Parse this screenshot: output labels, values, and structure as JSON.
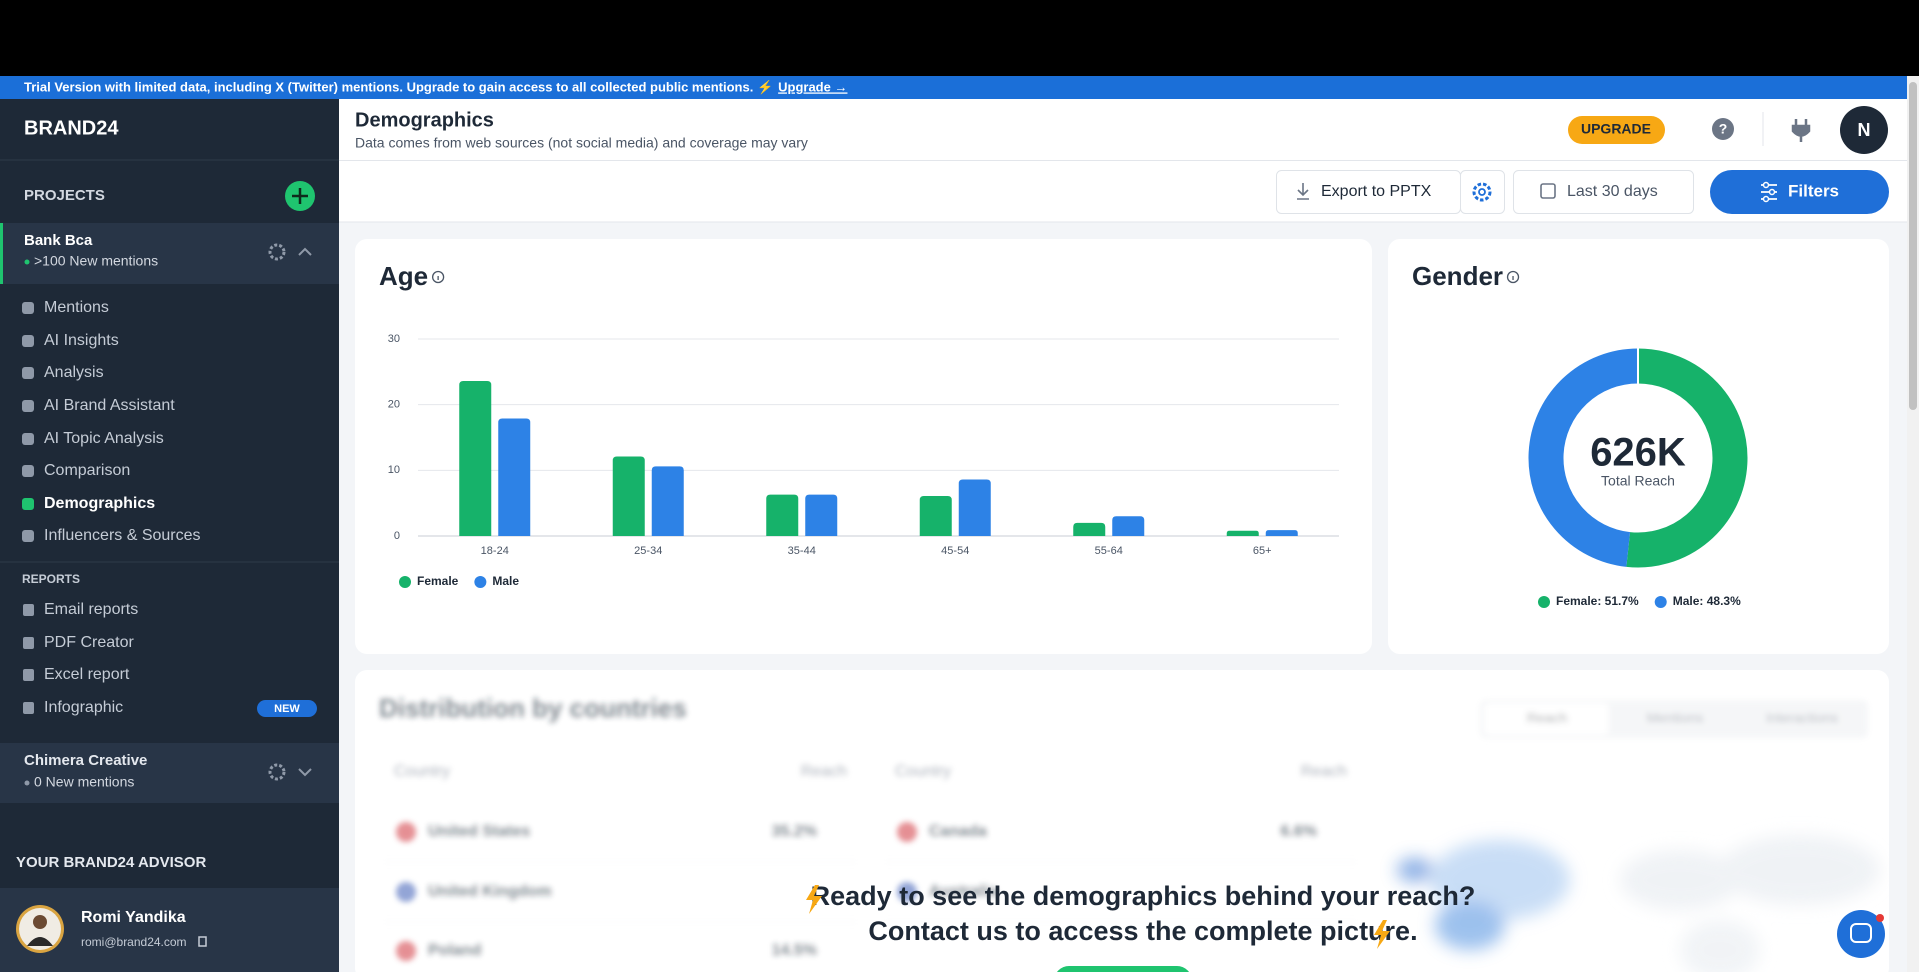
{
  "banner": {
    "text": "Trial Version with limited data, including X (Twitter) mentions. Upgrade to gain access to all collected public mentions. ⚡",
    "link": "Upgrade →"
  },
  "sidebar": {
    "brand": "BRAND24",
    "projects_heading": "PROJECTS",
    "projects": [
      {
        "name": "Bank Bca",
        "status": ">100 New mentions"
      },
      {
        "name": "Chimera Creative",
        "status": "0 New mentions"
      }
    ],
    "nav": [
      "Mentions",
      "AI Insights",
      "Analysis",
      "AI Brand Assistant",
      "AI Topic Analysis",
      "Comparison",
      "Demographics",
      "Influencers & Sources"
    ],
    "reports_heading": "REPORTS",
    "reports": [
      "Email reports",
      "PDF Creator",
      "Excel report",
      "Infographic"
    ],
    "badge": "NEW",
    "advisor_heading": "YOUR BRAND24 ADVISOR",
    "advisor": {
      "name": "Romi Yandika",
      "email": "romi@brand24.com"
    }
  },
  "header": {
    "title": "Demographics",
    "subtitle": "Data comes from web sources (not social media) and coverage may vary",
    "upgrade": "UPGRADE",
    "help": "?",
    "avatar": "N"
  },
  "toolbar": {
    "export": "Export to PPTX",
    "date_range": "Last 30 days",
    "filters": "Filters"
  },
  "chart_data": [
    {
      "type": "bar",
      "title": "Age",
      "categories": [
        "18-24",
        "25-34",
        "35-44",
        "45-54",
        "55-64",
        "65+"
      ],
      "series": [
        {
          "name": "Female",
          "color": "#16b26a",
          "values": [
            23.6,
            12.1,
            6.3,
            6.1,
            2.0,
            0.8
          ]
        },
        {
          "name": "Male",
          "color": "#2d82e6",
          "values": [
            17.9,
            10.6,
            6.3,
            8.6,
            3.0,
            0.9
          ]
        }
      ],
      "ylim": [
        0,
        30
      ],
      "yticks": [
        0,
        10,
        20,
        30
      ],
      "grid": true,
      "legend": "bottom-left"
    },
    {
      "type": "donut",
      "title": "Gender",
      "values": [
        51.7,
        48.3
      ],
      "value_labels": [
        "Female: 51.7%",
        "Male: 48.3%"
      ],
      "colors": [
        "#16b26a",
        "#2d82e6"
      ],
      "center_value": "626K",
      "center_label": "Total Reach"
    }
  ],
  "countries": {
    "title": "Distribution by countries",
    "tabs": [
      "Reach",
      "Mentions",
      "Interactions"
    ],
    "columns": [
      "Country",
      "Reach"
    ],
    "left_rows": [
      [
        "United States",
        "35.2%"
      ],
      [
        "United Kingdom"
      ],
      [
        "Poland",
        "14.5%"
      ]
    ],
    "right_rows": [
      [
        "Canada",
        "6.6%"
      ],
      [
        "Australia"
      ]
    ]
  },
  "overlay": {
    "line1": "Ready to see the demographics behind your reach?",
    "line2": "Contact us to access the complete picture."
  }
}
